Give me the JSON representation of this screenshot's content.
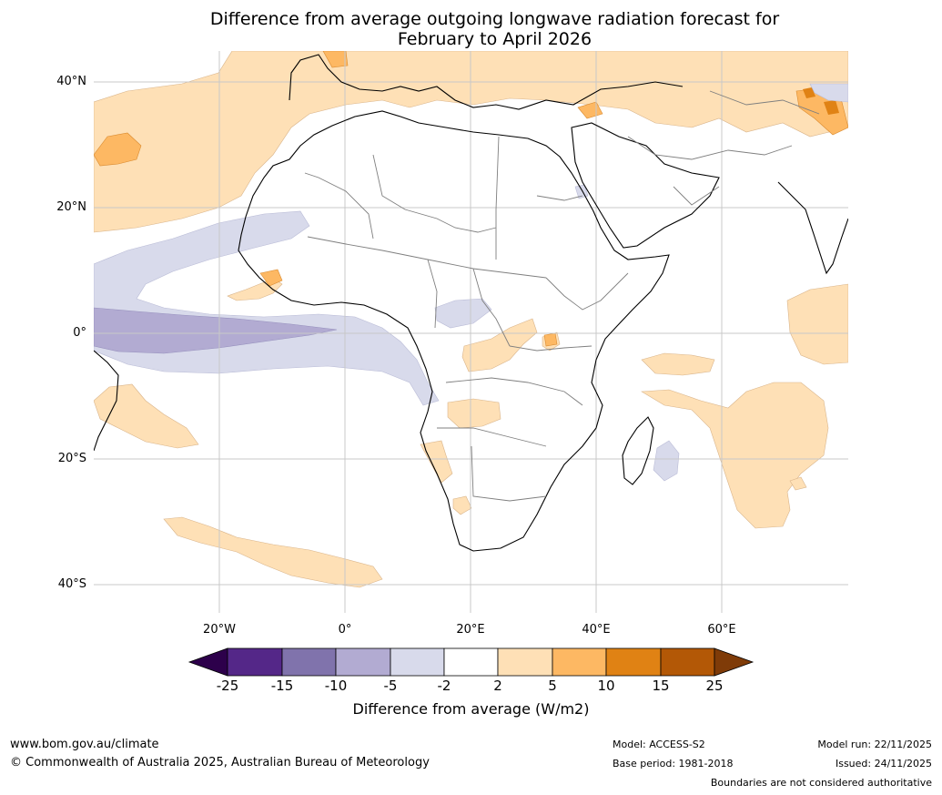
{
  "title": {
    "line1": "Difference from average outgoing longwave radiation forecast for",
    "line2": "February to April 2026"
  },
  "map": {
    "lat_labels": [
      "40°N",
      "20°N",
      "0°",
      "20°S",
      "40°S"
    ],
    "lon_labels": [
      "20°W",
      "0°",
      "20°E",
      "40°E",
      "60°E"
    ],
    "lon_range": [
      -40,
      80
    ],
    "lat_range": [
      -45,
      45
    ]
  },
  "colorbar": {
    "title": "Difference from average (W/m2)",
    "ticks": [
      "-25",
      "-15",
      "-10",
      "-5",
      "-2",
      "2",
      "5",
      "10",
      "15",
      "25"
    ],
    "colors": {
      "below_min": "#2d004b",
      "neg_25_15": "#542788",
      "neg_15_10": "#8073ac",
      "neg_10_5": "#b2abd2",
      "neg_5_2": "#d8daeb",
      "neutral": "#ffffff",
      "pos_2_5": "#fee0b6",
      "pos_5_10": "#fdb863",
      "pos_10_15": "#e08214",
      "pos_15_25": "#b35806",
      "above_max": "#7f3b08"
    }
  },
  "footer": {
    "website": "www.bom.gov.au/climate",
    "copyright": "© Commonwealth of Australia 2025, Australian Bureau of Meteorology",
    "model": "Model: ACCESS-S2",
    "base_period": "Base period: 1981-2018",
    "model_run": "Model run: 22/11/2025",
    "issued": "Issued: 24/11/2025",
    "disclaimer": "Boundaries are not considered authoritative"
  }
}
